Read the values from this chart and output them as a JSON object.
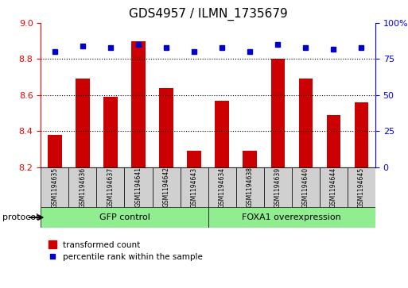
{
  "title": "GDS4957 / ILMN_1735679",
  "samples": [
    "GSM1194635",
    "GSM1194636",
    "GSM1194637",
    "GSM1194641",
    "GSM1194642",
    "GSM1194643",
    "GSM1194634",
    "GSM1194638",
    "GSM1194639",
    "GSM1194640",
    "GSM1194644",
    "GSM1194645"
  ],
  "transformed_count": [
    8.38,
    8.69,
    8.59,
    8.9,
    8.64,
    8.29,
    8.57,
    8.29,
    8.8,
    8.69,
    8.49,
    8.56
  ],
  "percentile_rank": [
    80,
    84,
    83,
    85,
    83,
    80,
    83,
    80,
    85,
    83,
    82,
    83
  ],
  "ylim_left": [
    8.2,
    9.0
  ],
  "ylim_right": [
    0,
    100
  ],
  "yticks_left": [
    8.2,
    8.4,
    8.6,
    8.8,
    9.0
  ],
  "yticks_right": [
    0,
    25,
    50,
    75,
    100
  ],
  "ytick_labels_right": [
    "0",
    "25",
    "50",
    "75",
    "100%"
  ],
  "hlines": [
    8.4,
    8.6,
    8.8
  ],
  "bar_color": "#cc0000",
  "dot_color": "#0000cc",
  "group1": {
    "label": "GFP control",
    "indices": [
      0,
      1,
      2,
      3,
      4,
      5
    ],
    "color": "#90ee90"
  },
  "group2": {
    "label": "FOXA1 overexpression",
    "indices": [
      6,
      7,
      8,
      9,
      10,
      11
    ],
    "color": "#90ee90"
  },
  "protocol_label": "protocol",
  "legend_bar_label": "transformed count",
  "legend_dot_label": "percentile rank within the sample",
  "bar_width": 0.5
}
